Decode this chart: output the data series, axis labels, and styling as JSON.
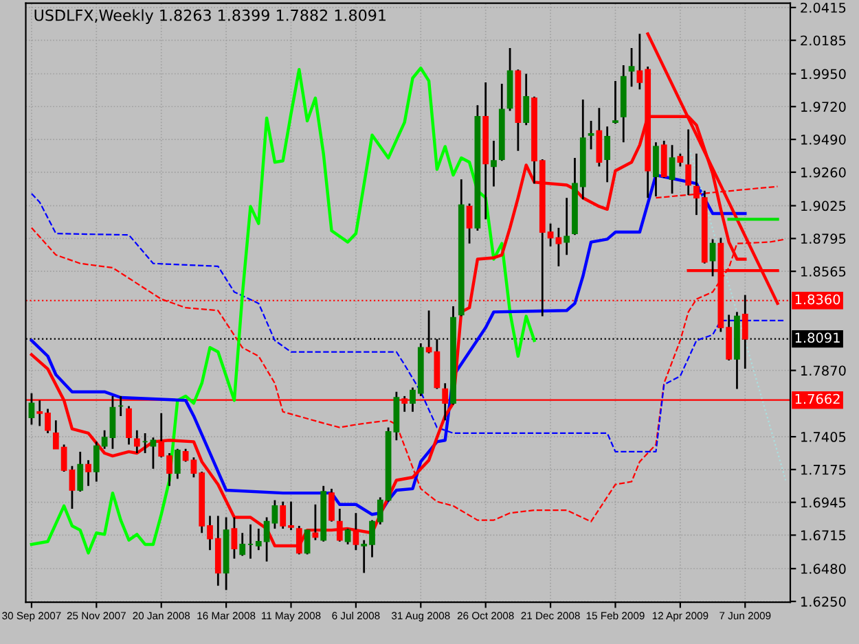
{
  "chart_data": {
    "type": "candlestick",
    "title": "USDLFX,Weekly 1.8263 1.8399 1.7882 1.8091",
    "x": [
      "2007-09-30",
      "2007-10-07",
      "2007-10-14",
      "2007-10-21",
      "2007-10-28",
      "2007-11-04",
      "2007-11-11",
      "2007-11-18",
      "2007-11-25",
      "2007-12-02",
      "2007-12-09",
      "2007-12-16",
      "2007-12-23",
      "2007-12-30",
      "2008-01-06",
      "2008-01-13",
      "2008-01-20",
      "2008-01-27",
      "2008-02-03",
      "2008-02-10",
      "2008-02-17",
      "2008-02-24",
      "2008-03-02",
      "2008-03-09",
      "2008-03-16",
      "2008-03-23",
      "2008-03-30",
      "2008-04-06",
      "2008-04-13",
      "2008-04-20",
      "2008-04-27",
      "2008-05-04",
      "2008-05-11",
      "2008-05-18",
      "2008-05-25",
      "2008-06-01",
      "2008-06-08",
      "2008-06-15",
      "2008-06-22",
      "2008-06-29",
      "2008-07-06",
      "2008-07-13",
      "2008-07-20",
      "2008-07-27",
      "2008-08-03",
      "2008-08-10",
      "2008-08-17",
      "2008-08-24",
      "2008-08-31",
      "2008-09-07",
      "2008-09-14",
      "2008-09-21",
      "2008-09-28",
      "2008-10-05",
      "2008-10-12",
      "2008-10-19",
      "2008-10-26",
      "2008-11-02",
      "2008-11-09",
      "2008-11-16",
      "2008-11-23",
      "2008-11-30",
      "2008-12-07",
      "2008-12-14",
      "2008-12-21",
      "2008-12-28",
      "2009-01-04",
      "2009-01-11",
      "2009-01-18",
      "2009-01-25",
      "2009-02-01",
      "2009-02-08",
      "2009-02-15",
      "2009-02-22",
      "2009-03-01",
      "2009-03-08",
      "2009-03-15",
      "2009-03-22",
      "2009-03-29",
      "2009-04-05",
      "2009-04-12",
      "2009-04-19",
      "2009-04-26",
      "2009-05-03",
      "2009-05-10",
      "2009-05-17",
      "2009-05-24",
      "2009-05-31",
      "2009-06-07"
    ],
    "ohlc": [
      [
        1.754,
        1.771,
        1.749,
        1.764
      ],
      [
        1.758,
        1.766,
        1.748,
        1.757
      ],
      [
        1.757,
        1.76,
        1.743,
        1.745
      ],
      [
        1.743,
        1.752,
        1.732,
        1.732
      ],
      [
        1.733,
        1.735,
        1.716,
        1.717
      ],
      [
        1.717,
        1.72,
        1.69,
        1.703
      ],
      [
        1.703,
        1.73,
        1.702,
        1.721
      ],
      [
        1.721,
        1.724,
        1.706,
        1.716
      ],
      [
        1.716,
        1.737,
        1.709,
        1.734
      ],
      [
        1.734,
        1.745,
        1.732,
        1.74
      ],
      [
        1.74,
        1.769,
        1.732,
        1.761
      ],
      [
        1.762,
        1.769,
        1.755,
        1.762
      ],
      [
        1.76,
        1.762,
        1.735,
        1.74
      ],
      [
        1.739,
        1.745,
        1.729,
        1.734
      ],
      [
        1.737,
        1.743,
        1.729,
        1.737
      ],
      [
        1.734,
        1.74,
        1.718,
        1.738
      ],
      [
        1.737,
        1.757,
        1.726,
        1.727
      ],
      [
        1.727,
        1.729,
        1.706,
        1.715
      ],
      [
        1.715,
        1.732,
        1.711,
        1.731
      ],
      [
        1.73,
        1.732,
        1.723,
        1.724
      ],
      [
        1.724,
        1.726,
        1.712,
        1.715
      ],
      [
        1.715,
        1.716,
        1.673,
        1.678
      ],
      [
        1.678,
        1.685,
        1.661,
        1.669
      ],
      [
        1.669,
        1.685,
        1.636,
        1.645
      ],
      [
        1.645,
        1.684,
        1.633,
        1.675
      ],
      [
        1.676,
        1.684,
        1.655,
        1.662
      ],
      [
        1.658,
        1.673,
        1.657,
        1.665
      ],
      [
        1.665,
        1.679,
        1.655,
        1.665
      ],
      [
        1.664,
        1.676,
        1.661,
        1.667
      ],
      [
        1.667,
        1.684,
        1.653,
        1.681
      ],
      [
        1.68,
        1.696,
        1.676,
        1.692
      ],
      [
        1.692,
        1.695,
        1.676,
        1.678
      ],
      [
        1.678,
        1.695,
        1.675,
        1.677
      ],
      [
        1.676,
        1.678,
        1.658,
        1.659
      ],
      [
        1.659,
        1.675,
        1.658,
        1.675
      ],
      [
        1.673,
        1.693,
        1.668,
        1.67
      ],
      [
        1.668,
        1.706,
        1.667,
        1.702
      ],
      [
        1.701,
        1.704,
        1.681,
        1.682
      ],
      [
        1.681,
        1.69,
        1.667,
        1.668
      ],
      [
        1.667,
        1.676,
        1.665,
        1.675
      ],
      [
        1.675,
        1.687,
        1.661,
        1.665
      ],
      [
        1.664,
        1.668,
        1.645,
        1.665
      ],
      [
        1.665,
        1.682,
        1.656,
        1.681
      ],
      [
        1.681,
        1.698,
        1.679,
        1.696
      ],
      [
        1.696,
        1.747,
        1.695,
        1.744
      ],
      [
        1.744,
        1.772,
        1.738,
        1.768
      ],
      [
        1.767,
        1.769,
        1.758,
        1.764
      ],
      [
        1.764,
        1.775,
        1.758,
        1.773
      ],
      [
        1.771,
        1.806,
        1.769,
        1.803
      ],
      [
        1.803,
        1.829,
        1.799,
        1.8
      ],
      [
        1.8,
        1.809,
        1.774,
        1.775
      ],
      [
        1.774,
        1.778,
        1.752,
        1.764
      ],
      [
        1.764,
        1.832,
        1.763,
        1.824
      ],
      [
        1.826,
        1.921,
        1.825,
        1.903
      ],
      [
        1.902,
        1.904,
        1.876,
        1.887
      ],
      [
        1.887,
        1.973,
        1.885,
        1.965
      ],
      [
        1.965,
        1.989,
        1.893,
        1.932
      ],
      [
        1.93,
        1.948,
        1.916,
        1.934
      ],
      [
        1.935,
        1.988,
        1.934,
        1.97
      ],
      [
        1.971,
        2.013,
        1.969,
        1.997
      ],
      [
        1.997,
        1.998,
        1.941,
        1.961
      ],
      [
        1.961,
        1.995,
        1.959,
        1.979
      ],
      [
        1.978,
        1.979,
        1.918,
        1.934
      ],
      [
        1.934,
        1.935,
        1.825,
        1.884
      ],
      [
        1.884,
        1.89,
        1.874,
        1.88
      ],
      [
        1.88,
        1.887,
        1.86,
        1.876
      ],
      [
        1.877,
        1.908,
        1.868,
        1.881
      ],
      [
        1.883,
        1.936,
        1.882,
        1.918
      ],
      [
        1.916,
        1.977,
        1.907,
        1.95
      ],
      [
        1.952,
        1.962,
        1.942,
        1.953
      ],
      [
        1.955,
        1.971,
        1.93,
        1.933
      ],
      [
        1.935,
        1.958,
        1.919,
        1.951
      ],
      [
        1.961,
        1.99,
        1.96,
        1.962
      ],
      [
        1.965,
        2.001,
        1.947,
        1.993
      ],
      [
        1.997,
        2.013,
        1.986,
        2.0
      ],
      [
        1.997,
        2.023,
        1.984,
        1.989
      ],
      [
        1.998,
        2.0,
        1.908,
        1.927
      ],
      [
        1.923,
        1.947,
        1.909,
        1.944
      ],
      [
        1.945,
        1.948,
        1.922,
        1.923
      ],
      [
        1.921,
        1.945,
        1.911,
        1.936
      ],
      [
        1.937,
        1.939,
        1.93,
        1.933
      ],
      [
        1.931,
        1.956,
        1.91,
        1.917
      ],
      [
        1.916,
        1.939,
        1.896,
        1.908
      ],
      [
        1.908,
        1.913,
        1.862,
        1.863
      ],
      [
        1.864,
        1.879,
        1.853,
        1.876
      ],
      [
        1.876,
        1.88,
        1.814,
        1.817
      ],
      [
        1.817,
        1.826,
        1.794,
        1.795
      ],
      [
        1.795,
        1.828,
        1.774,
        1.825
      ],
      [
        1.8263,
        1.8399,
        1.7882,
        1.8091
      ]
    ],
    "colors": [
      "#008000",
      "#ff0000",
      "#ff0000",
      "#ff0000",
      "#ff0000",
      "#ff0000",
      "#008000",
      "#ff0000",
      "#008000",
      "#008000",
      "#008000",
      "#008000",
      "#ff0000",
      "#ff0000",
      "#008000",
      "#008000",
      "#ff0000",
      "#ff0000",
      "#008000",
      "#ff0000",
      "#ff0000",
      "#ff0000",
      "#ff0000",
      "#ff0000",
      "#008000",
      "#ff0000",
      "#008000",
      "#008000",
      "#008000",
      "#008000",
      "#008000",
      "#ff0000",
      "#ff0000",
      "#ff0000",
      "#008000",
      "#ff0000",
      "#008000",
      "#ff0000",
      "#ff0000",
      "#008000",
      "#ff0000",
      "#008000",
      "#008000",
      "#008000",
      "#008000",
      "#008000",
      "#ff0000",
      "#008000",
      "#008000",
      "#ff0000",
      "#ff0000",
      "#ff0000",
      "#008000",
      "#008000",
      "#ff0000",
      "#008000",
      "#ff0000",
      "#008000",
      "#008000",
      "#008000",
      "#ff0000",
      "#008000",
      "#ff0000",
      "#ff0000",
      "#ff0000",
      "#ff0000",
      "#008000",
      "#008000",
      "#008000",
      "#008000",
      "#ff0000",
      "#008000",
      "#008000",
      "#008000",
      "#008000",
      "#ff0000",
      "#ff0000",
      "#008000",
      "#ff0000",
      "#008000",
      "#ff0000",
      "#ff0000",
      "#ff0000",
      "#ff0000",
      "#008000",
      "#ff0000",
      "#ff0000",
      "#008000",
      "#ff0000"
    ],
    "series": [
      {
        "type": "line",
        "color": "#ff0000",
        "line_style": "dashed",
        "x": [
          "2007-09-30",
          "2007-10-21",
          "2007-11-11",
          "2007-12-09",
          "2008-01-20",
          "2008-02-10",
          "2008-03-09",
          "2008-03-30",
          "2008-04-13",
          "2008-04-27",
          "2008-05-04",
          "2008-06-08",
          "2008-06-22",
          "2008-07-06",
          "2008-08-03",
          "2008-08-10",
          "2008-08-31",
          "2008-09-14",
          "2008-09-28",
          "2008-10-19",
          "2008-11-02",
          "2008-11-16",
          "2008-12-07",
          "2009-01-04",
          "2009-01-25",
          "2009-02-15",
          "2009-03-01",
          "2009-03-08",
          "2009-03-22",
          "2009-03-29",
          "2009-04-12",
          "2009-04-19",
          "2009-04-26",
          "2009-05-10",
          "2009-05-24",
          "2009-05-31",
          "2009-06-28",
          "2009-07-12"
        ],
        "values": [
          1.887,
          1.868,
          1.862,
          1.859,
          1.837,
          1.831,
          1.829,
          1.803,
          1.797,
          1.778,
          1.758,
          1.75,
          1.747,
          1.749,
          1.752,
          1.749,
          1.704,
          1.695,
          1.692,
          1.682,
          1.682,
          1.687,
          1.689,
          1.689,
          1.681,
          1.707,
          1.709,
          1.723,
          1.735,
          1.778,
          1.808,
          1.828,
          1.837,
          1.842,
          1.859,
          1.876,
          1.877,
          1.879
        ]
      },
      {
        "type": "line",
        "color": "#0000ff",
        "line_style": "dashed",
        "x": [
          "2007-09-30",
          "2007-10-07",
          "2007-10-21",
          "2007-12-23",
          "2008-01-13",
          "2008-03-09",
          "2008-03-23",
          "2008-04-13",
          "2008-04-27",
          "2008-05-11",
          "2008-08-10",
          "2008-08-17",
          "2008-08-31",
          "2008-09-14",
          "2008-09-28",
          "2009-02-08",
          "2009-02-15",
          "2009-03-22",
          "2009-03-29",
          "2009-04-12",
          "2009-04-26",
          "2009-05-10",
          "2009-05-17",
          "2009-07-12"
        ],
        "values": [
          1.911,
          1.905,
          1.883,
          1.882,
          1.862,
          1.86,
          1.842,
          1.834,
          1.808,
          1.8,
          1.8,
          1.791,
          1.772,
          1.747,
          1.743,
          1.743,
          1.73,
          1.73,
          1.777,
          1.783,
          1.808,
          1.812,
          1.822,
          1.822
        ]
      },
      {
        "type": "line",
        "color": "#00ff00",
        "line_style": "solid",
        "x": [
          "2007-09-30",
          "2007-10-14",
          "2007-10-28",
          "2007-11-04",
          "2007-11-11",
          "2007-11-18",
          "2007-11-25",
          "2007-12-02",
          "2007-12-09",
          "2007-12-16",
          "2007-12-23",
          "2007-12-30",
          "2008-01-06",
          "2008-01-13",
          "2008-01-20",
          "2008-01-27",
          "2008-02-03",
          "2008-02-10",
          "2008-02-17",
          "2008-02-24",
          "2008-03-02",
          "2008-03-09",
          "2008-03-16",
          "2008-03-23",
          "2008-03-30",
          "2008-04-06",
          "2008-04-13",
          "2008-04-20",
          "2008-04-27",
          "2008-05-04",
          "2008-05-11",
          "2008-05-18",
          "2008-05-25",
          "2008-06-01",
          "2008-06-08",
          "2008-06-15",
          "2008-06-29",
          "2008-07-06",
          "2008-07-20",
          "2008-08-03",
          "2008-08-17",
          "2008-08-24",
          "2008-08-31",
          "2008-09-07",
          "2008-09-14",
          "2008-09-21",
          "2008-09-28",
          "2008-10-05",
          "2008-10-12",
          "2008-10-19",
          "2008-10-26",
          "2008-11-02",
          "2008-11-09",
          "2008-11-16",
          "2008-11-23",
          "2008-11-30",
          "2008-12-07"
        ],
        "values": [
          1.665,
          1.667,
          1.692,
          1.678,
          1.675,
          1.659,
          1.673,
          1.672,
          1.701,
          1.682,
          1.668,
          1.672,
          1.665,
          1.665,
          1.686,
          1.71,
          1.766,
          1.769,
          1.764,
          1.778,
          1.803,
          1.8,
          1.783,
          1.766,
          1.84,
          1.902,
          1.89,
          1.964,
          1.933,
          1.934,
          1.967,
          1.998,
          1.962,
          1.978,
          1.939,
          1.885,
          1.877,
          1.883,
          1.952,
          1.936,
          1.961,
          1.992,
          1.999,
          1.99,
          1.928,
          1.944,
          1.924,
          1.936,
          1.933,
          1.913,
          1.908,
          1.865,
          1.876,
          1.828,
          1.797,
          1.825,
          1.808
        ]
      },
      {
        "type": "line",
        "color": "#0000ff",
        "line_style": "solid",
        "x": [
          "2007-09-30",
          "2007-10-14",
          "2007-10-21",
          "2007-11-04",
          "2007-12-02",
          "2007-12-16",
          "2008-02-10",
          "2008-02-17",
          "2008-03-02",
          "2008-03-16",
          "2008-05-04",
          "2008-06-15",
          "2008-06-22",
          "2008-07-06",
          "2008-07-20",
          "2008-07-27",
          "2008-08-03",
          "2008-08-10",
          "2008-08-24",
          "2008-08-31",
          "2008-09-14",
          "2008-09-21",
          "2008-09-28",
          "2008-10-26",
          "2008-11-02",
          "2009-01-04",
          "2009-01-11",
          "2009-01-18",
          "2009-01-25",
          "2009-02-08",
          "2009-02-15",
          "2009-03-08",
          "2009-03-22",
          "2009-04-26",
          "2009-05-10",
          "2009-06-07"
        ],
        "values": [
          1.808,
          1.797,
          1.784,
          1.772,
          1.772,
          1.768,
          1.766,
          1.755,
          1.729,
          1.703,
          1.701,
          1.701,
          1.693,
          1.693,
          1.686,
          1.687,
          1.696,
          1.703,
          1.704,
          1.723,
          1.737,
          1.738,
          1.783,
          1.817,
          1.828,
          1.829,
          1.834,
          1.853,
          1.877,
          1.879,
          1.884,
          1.884,
          1.924,
          1.918,
          1.897,
          1.897
        ]
      },
      {
        "type": "line",
        "color": "#ff0000",
        "line_style": "solid",
        "x": [
          "2007-09-30",
          "2007-10-14",
          "2007-10-28",
          "2007-11-04",
          "2007-11-18",
          "2007-12-02",
          "2007-12-09",
          "2007-12-23",
          "2007-12-30",
          "2008-01-13",
          "2008-01-27",
          "2008-02-17",
          "2008-02-24",
          "2008-03-09",
          "2008-03-23",
          "2008-04-06",
          "2008-04-20",
          "2008-04-27",
          "2008-05-18",
          "2008-05-25",
          "2008-06-15",
          "2008-06-29",
          "2008-07-06",
          "2008-07-20",
          "2008-07-27",
          "2008-08-10",
          "2008-08-24",
          "2008-09-07",
          "2008-09-14",
          "2008-09-21",
          "2008-09-28",
          "2008-10-05",
          "2008-10-12",
          "2008-10-19",
          "2008-11-02",
          "2008-11-09",
          "2008-11-16",
          "2008-11-23",
          "2008-11-30",
          "2008-12-07",
          "2009-01-04",
          "2009-01-11",
          "2009-01-18",
          "2009-02-01",
          "2009-02-08",
          "2009-02-15",
          "2009-03-01",
          "2009-03-08",
          "2009-03-15",
          "2009-04-19",
          "2009-04-26",
          "2009-05-10",
          "2009-05-17",
          "2009-05-24",
          "2009-05-31",
          "2009-06-07"
        ],
        "values": [
          1.798,
          1.788,
          1.766,
          1.746,
          1.743,
          1.729,
          1.727,
          1.73,
          1.729,
          1.737,
          1.738,
          1.737,
          1.723,
          1.707,
          1.684,
          1.684,
          1.676,
          1.664,
          1.664,
          1.675,
          1.675,
          1.676,
          1.675,
          1.673,
          1.686,
          1.71,
          1.712,
          1.724,
          1.74,
          1.755,
          1.764,
          1.828,
          1.831,
          1.865,
          1.866,
          1.868,
          1.887,
          1.908,
          1.931,
          1.919,
          1.917,
          1.914,
          1.908,
          1.902,
          1.9,
          1.927,
          1.933,
          1.945,
          1.965,
          1.965,
          1.959,
          1.925,
          1.9,
          1.877,
          1.865,
          1.865
        ]
      },
      {
        "type": "line",
        "color": "#ff0000",
        "line_style": "solid",
        "x": [
          "2009-03-15",
          "2009-07-05"
        ],
        "values": [
          2.023,
          1.834
        ]
      },
      {
        "type": "line",
        "color": "#ff0000",
        "line_style": "dashed",
        "x": [
          "2009-03-22",
          "2009-07-05"
        ],
        "values": [
          1.908,
          1.916
        ]
      },
      {
        "type": "line",
        "color": "#00e000",
        "line_style": "solid",
        "x": [
          "2009-05-24",
          "2009-07-05"
        ],
        "values": [
          1.893,
          1.893
        ]
      },
      {
        "type": "line",
        "color": "#ff0000",
        "line_style": "solid",
        "x": [
          "2009-04-19",
          "2009-07-05"
        ],
        "values": [
          1.857,
          1.857
        ]
      },
      {
        "type": "line",
        "color": "#a8e0e0",
        "line_style": "dotted",
        "x": [
          "2009-04-19",
          "2009-07-12"
        ],
        "values": [
          1.945,
          1.71
        ]
      }
    ],
    "ref_lines": [
      {
        "axis": "y",
        "value": 1.836,
        "label": "1.8360",
        "color": "#ff0000",
        "line_style": "dotted"
      },
      {
        "axis": "y",
        "value": 1.8091,
        "label": "1.8091",
        "color": "#000000",
        "line_style": "dotted"
      },
      {
        "axis": "y",
        "value": 1.7662,
        "label": "1.7662",
        "color": "#ff0000",
        "line_style": "solid"
      }
    ],
    "xlim": [
      "2007-09-25",
      "2009-07-16"
    ],
    "ylim": [
      1.6245,
      2.0445
    ],
    "xticks": [
      {
        "value": "2007-09-30",
        "label": "30 Sep 2007"
      },
      {
        "value": "2007-11-25",
        "label": "25 Nov 2007"
      },
      {
        "value": "2008-01-20",
        "label": "20 Jan 2008"
      },
      {
        "value": "2008-03-16",
        "label": "16 Mar 2008"
      },
      {
        "value": "2008-05-11",
        "label": "11 May 2008"
      },
      {
        "value": "2008-07-06",
        "label": "6 Jul 2008"
      },
      {
        "value": "2008-08-31",
        "label": "31 Aug 2008"
      },
      {
        "value": "2008-10-26",
        "label": "26 Oct 2008"
      },
      {
        "value": "2008-12-21",
        "label": "21 Dec 2008"
      },
      {
        "value": "2009-02-15",
        "label": "15 Feb 2009"
      },
      {
        "value": "2009-04-12",
        "label": "12 Apr 2009"
      },
      {
        "value": "2009-06-07",
        "label": "7 Jun 2009"
      }
    ],
    "yticks": [
      2.0415,
      2.0185,
      {
        "value": 1.995,
        "label": "1.9950"
      },
      {
        "value": 1.972,
        "label": "1.9720"
      },
      {
        "value": 1.949,
        "label": "1.9490"
      },
      {
        "value": 1.926,
        "label": "1.9260"
      },
      1.9025,
      1.8795,
      1.8565,
      {
        "value": 1.787,
        "label": "1.7870"
      },
      1.7405,
      1.7175,
      1.6945,
      1.6715,
      {
        "value": 1.648,
        "label": "1.6480"
      },
      {
        "value": 1.625,
        "label": "1.6250"
      }
    ],
    "grid": true
  }
}
